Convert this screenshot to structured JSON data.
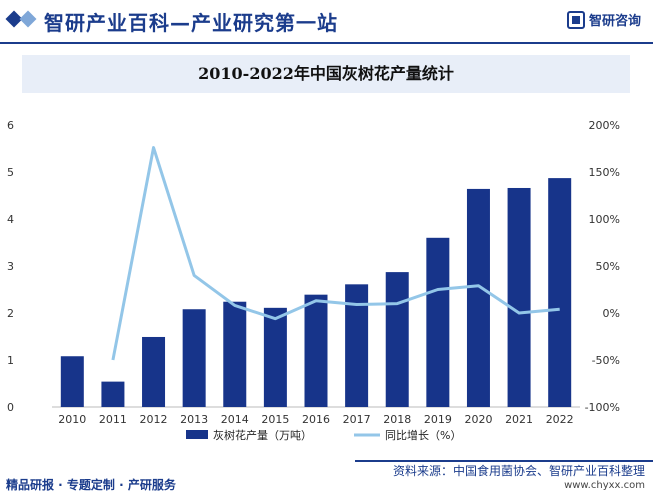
{
  "header": {
    "title": "智研产业百科—产业研究第一站",
    "logo_text": "智研咨询"
  },
  "colors": {
    "bar": "#17348a",
    "line": "#93c6e8",
    "brand": "#1b3c8c"
  },
  "chart_data": {
    "type": "bar",
    "title": "2010-2022年中国灰树花产量统计",
    "categories": [
      "2010",
      "2011",
      "2012",
      "2013",
      "2014",
      "2015",
      "2016",
      "2017",
      "2018",
      "2019",
      "2020",
      "2021",
      "2022"
    ],
    "series": [
      {
        "name": "灰树花产量（万吨）",
        "type": "bar",
        "axis": "left",
        "values": [
          1.08,
          0.54,
          1.49,
          2.08,
          2.24,
          2.11,
          2.39,
          2.61,
          2.87,
          3.6,
          4.64,
          4.66,
          4.87
        ]
      },
      {
        "name": "同比增长（%）",
        "type": "line",
        "axis": "right",
        "values": [
          null,
          -50,
          176,
          40,
          8,
          -6,
          13,
          9,
          10,
          25,
          29,
          0,
          4
        ]
      }
    ],
    "y_left": {
      "range": [
        0,
        6
      ],
      "ticks": [
        "0",
        "1",
        "2",
        "3",
        "4",
        "5",
        "6"
      ]
    },
    "y_right": {
      "range": [
        -100,
        200
      ],
      "ticks": [
        "-100%",
        "-50%",
        "0%",
        "50%",
        "100%",
        "150%",
        "200%"
      ]
    },
    "legend_position": "bottom",
    "grid": false
  },
  "footer": {
    "left": "精品研报 · 专题定制 · 产研服务",
    "source": "资料来源：中国食用菌协会、智研产业百科整理",
    "url": "www.chyxx.com"
  }
}
